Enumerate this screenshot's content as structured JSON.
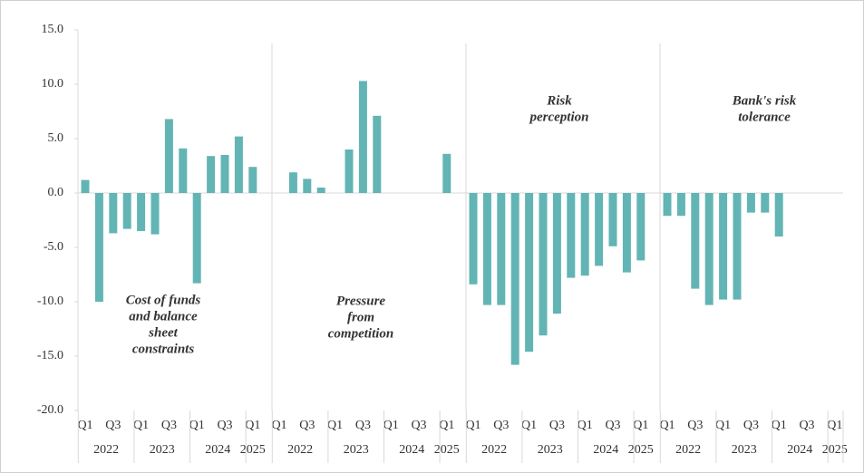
{
  "chart_data": {
    "type": "bar",
    "color": "#62b5b4",
    "ylim": [
      -20,
      15
    ],
    "yticks": [
      {
        "value": -20,
        "label": "-20.0"
      },
      {
        "value": -15,
        "label": "-15.0"
      },
      {
        "value": -10,
        "label": "-10.0"
      },
      {
        "value": -5,
        "label": "-5.0"
      },
      {
        "value": 0,
        "label": "0.0"
      },
      {
        "value": 5,
        "label": "5.0"
      },
      {
        "value": 10,
        "label": "10.0"
      },
      {
        "value": 15,
        "label": "15.0"
      }
    ],
    "categories": [
      "Q1",
      null,
      "Q3",
      null,
      "Q1",
      null,
      "Q3",
      null,
      "Q1",
      null,
      "Q3",
      null,
      "Q1"
    ],
    "years": [
      "2022",
      "2023",
      "2024",
      "2025"
    ],
    "panels": [
      {
        "annotation": [
          "Cost of funds",
          "and balance",
          "sheet",
          "constraints"
        ],
        "values": [
          1.2,
          -10.0,
          -3.7,
          -3.3,
          -3.5,
          -3.8,
          6.8,
          4.1,
          -8.3,
          3.4,
          3.5,
          5.2,
          2.4
        ]
      },
      {
        "annotation": [
          "Pressure",
          "from",
          "competition"
        ],
        "values": [
          0,
          1.9,
          1.3,
          0.5,
          0,
          4.0,
          10.3,
          7.1,
          0,
          0,
          0,
          0,
          3.6
        ]
      },
      {
        "annotation": [
          "Risk",
          "perception"
        ],
        "values": [
          -8.4,
          -10.3,
          -10.3,
          -15.8,
          -14.6,
          -13.1,
          -11.1,
          -7.8,
          -7.6,
          -6.7,
          -4.9,
          -7.3,
          -6.2
        ]
      },
      {
        "annotation": [
          "Bank's risk",
          "tolerance"
        ],
        "values": [
          -2.1,
          -2.1,
          -8.8,
          -10.3,
          -9.8,
          -9.8,
          -1.8,
          -1.8,
          -4.0,
          0,
          0,
          0,
          0
        ]
      }
    ]
  }
}
